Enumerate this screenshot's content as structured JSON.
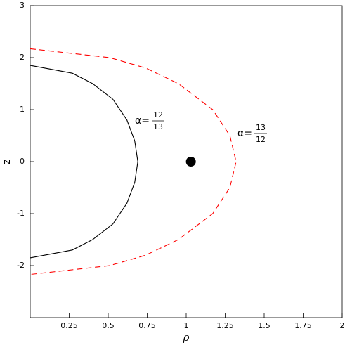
{
  "chart_data": {
    "type": "line",
    "xlabel": "ρ",
    "ylabel": "z",
    "xlim": [
      0,
      2
    ],
    "ylim": [
      -3,
      3
    ],
    "xticks": [
      0.25,
      0.5,
      0.75,
      1,
      1.25,
      1.5,
      1.75,
      2
    ],
    "yticks": [
      -2,
      -1,
      0,
      1,
      2,
      3
    ],
    "series": [
      {
        "color": "#000000",
        "dashed": false,
        "x": [
          0,
          0.27,
          0.4,
          0.53,
          0.62,
          0.67,
          0.69,
          0.67,
          0.62,
          0.53,
          0.4,
          0.27,
          0
        ],
        "y": [
          1.85,
          1.7,
          1.5,
          1.2,
          0.8,
          0.4,
          0,
          -0.4,
          -0.8,
          -1.2,
          -1.5,
          -1.7,
          -1.85
        ]
      },
      {
        "color": "#ff0000",
        "dashed": true,
        "x": [
          0,
          0.51,
          0.74,
          0.95,
          1.17,
          1.28,
          1.32,
          1.28,
          1.17,
          0.95,
          0.74,
          0.51,
          0
        ],
        "y": [
          2.17,
          2.0,
          1.8,
          1.5,
          1.0,
          0.5,
          0,
          -0.5,
          -1.0,
          -1.5,
          -1.8,
          -2.0,
          -2.17
        ]
      },
      {
        "color": "#000000",
        "markers": true,
        "x": [
          1.03
        ],
        "y": [
          0
        ]
      }
    ],
    "annotations": [
      {
        "prefix": "α=",
        "numerator": "12",
        "denominator": "13"
      },
      {
        "prefix": "α=",
        "numerator": "13",
        "denominator": "12"
      }
    ]
  }
}
